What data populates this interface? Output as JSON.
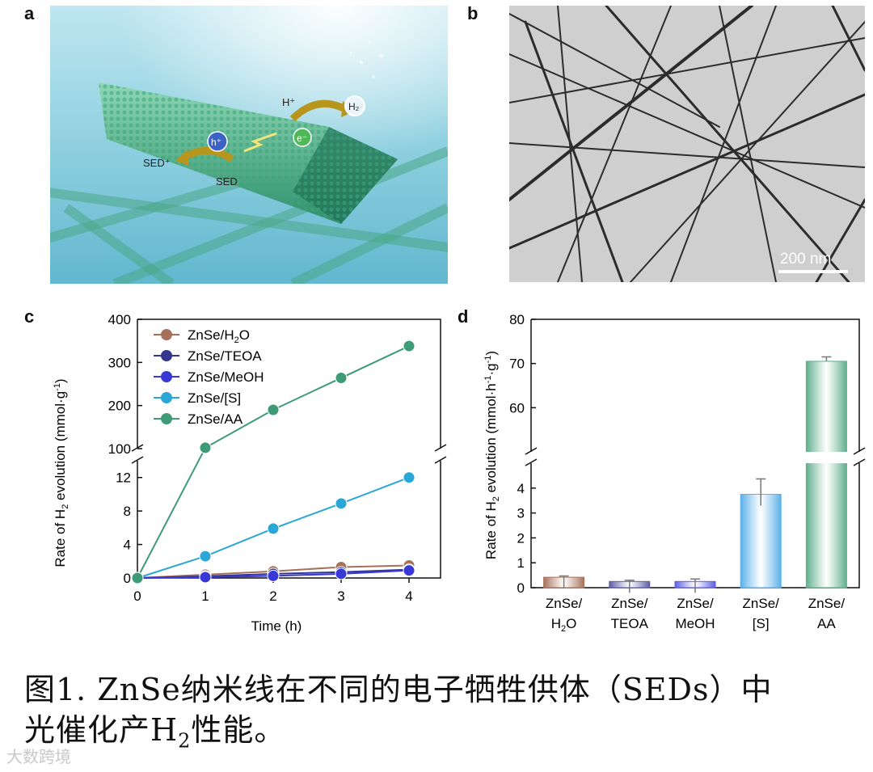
{
  "panels": {
    "a": {
      "letter": "a",
      "labels": {
        "h_plus": "H⁺",
        "h2": "H₂",
        "electron": "e⁻",
        "hole": "h⁺",
        "sed_plus": "SED⁺",
        "sed": "SED"
      }
    },
    "b": {
      "letter": "b",
      "scale_bar": "200 nm"
    },
    "c": {
      "letter": "c"
    },
    "d": {
      "letter": "d"
    }
  },
  "caption": {
    "line1": "图1. ZnSe纳米线在不同的电子牺牲供体（SEDs）中",
    "line2_prefix": "光催化产H",
    "line2_sub": "2",
    "line2_suffix": "性能。"
  },
  "watermark": "大数跨境",
  "colors": {
    "h2o": "#a5715a",
    "teoa": "#33358f",
    "meoh": "#3838d6",
    "s": "#2aa7d6",
    "aa": "#3f9a78"
  },
  "chart_data": [
    {
      "type": "line",
      "title": "",
      "xlabel": "Time (h)",
      "ylabel": "Rate of H2 evolution (mmol·g-1)",
      "x": [
        0,
        1,
        2,
        3,
        4
      ],
      "xticks": [
        "0",
        "1",
        "2",
        "3",
        "4"
      ],
      "ylim_lower": [
        0,
        14
      ],
      "ylim_upper": [
        100,
        400
      ],
      "yticks_lower": [
        "0",
        "4",
        "8",
        "12"
      ],
      "yticks_upper": [
        "100",
        "200",
        "300",
        "400"
      ],
      "axis_break": true,
      "series": [
        {
          "name": "ZnSe/H2O",
          "color_key": "h2o",
          "values": [
            0,
            0.4,
            0.8,
            1.3,
            1.5
          ]
        },
        {
          "name": "ZnSe/TEOA",
          "color_key": "teoa",
          "values": [
            0,
            0.2,
            0.5,
            0.7,
            1.0
          ]
        },
        {
          "name": "ZnSe/MeOH",
          "color_key": "meoh",
          "values": [
            0,
            0.1,
            0.25,
            0.5,
            0.9
          ]
        },
        {
          "name": "ZnSe/[S]",
          "color_key": "s",
          "values": [
            0,
            2.6,
            5.9,
            8.9,
            12.0
          ]
        },
        {
          "name": "ZnSe/AA",
          "color_key": "aa",
          "values": [
            0,
            102,
            190,
            264,
            338
          ]
        }
      ]
    },
    {
      "type": "bar",
      "title": "",
      "xlabel": "",
      "ylabel": "Rate of H2 evolution (mmol·h-1·g-1)",
      "categories": [
        [
          "ZnSe/",
          "H2O"
        ],
        [
          "ZnSe/",
          "TEOA"
        ],
        [
          "ZnSe/",
          "MeOH"
        ],
        [
          "ZnSe/",
          "[S]"
        ],
        [
          "ZnSe/",
          "AA"
        ]
      ],
      "values": [
        0.42,
        0.25,
        0.25,
        3.75,
        70.5
      ],
      "errors": [
        0.05,
        0.05,
        0.1,
        0.62,
        1.0
      ],
      "ylim_lower": [
        0,
        5
      ],
      "ylim_upper": [
        50,
        80
      ],
      "yticks_lower": [
        "0",
        "1",
        "2",
        "3",
        "4"
      ],
      "yticks_upper": [
        "60",
        "70",
        "80"
      ],
      "axis_break": true,
      "bar_colors": [
        "#a5715a",
        "#5b5da6",
        "#5b5de0",
        "#5ab0e8",
        "#5fae8c"
      ]
    }
  ]
}
